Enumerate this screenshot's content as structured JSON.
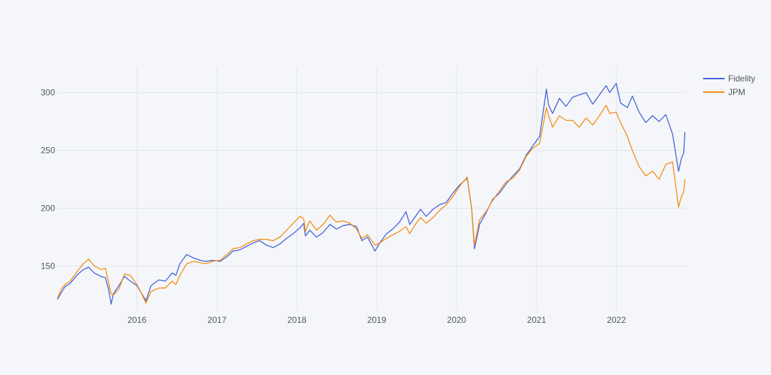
{
  "chart_data": {
    "type": "line",
    "title": "",
    "xlabel": "",
    "ylabel": "",
    "x_range": [
      "2015-01-02",
      "2022-11-10"
    ],
    "xlim": [
      "2015-01-01",
      "2022-11-15"
    ],
    "ylim": [
      112,
      322
    ],
    "x_tick_labels": [
      "2016",
      "2017",
      "2018",
      "2019",
      "2020",
      "2021",
      "2022"
    ],
    "y_tick_values": [
      150,
      200,
      250,
      300
    ],
    "y_tick_labels": [
      "150",
      "200",
      "250",
      "300"
    ],
    "grid": true,
    "legend_position": "top-right",
    "series": [
      {
        "name": "Fidelity",
        "color": "#4363d8",
        "points": [
          [
            "2015-01-02",
            121
          ],
          [
            "2015-01-20",
            127
          ],
          [
            "2015-02-05",
            132
          ],
          [
            "2015-03-01",
            135
          ],
          [
            "2015-04-01",
            142
          ],
          [
            "2015-05-01",
            147
          ],
          [
            "2015-05-25",
            149
          ],
          [
            "2015-06-20",
            144
          ],
          [
            "2015-07-20",
            141
          ],
          [
            "2015-08-10",
            140
          ],
          [
            "2015-08-24",
            130
          ],
          [
            "2015-09-05",
            117
          ],
          [
            "2015-09-15",
            126
          ],
          [
            "2015-10-10",
            133
          ],
          [
            "2015-11-05",
            141
          ],
          [
            "2015-12-01",
            137
          ],
          [
            "2016-01-01",
            133
          ],
          [
            "2016-01-20",
            127
          ],
          [
            "2016-02-11",
            120
          ],
          [
            "2016-03-05",
            133
          ],
          [
            "2016-04-10",
            138
          ],
          [
            "2016-05-10",
            137
          ],
          [
            "2016-06-10",
            144
          ],
          [
            "2016-06-27",
            142
          ],
          [
            "2016-07-15",
            152
          ],
          [
            "2016-08-15",
            160
          ],
          [
            "2016-09-15",
            157
          ],
          [
            "2016-10-15",
            155
          ],
          [
            "2016-11-10",
            154
          ],
          [
            "2016-12-10",
            155
          ],
          [
            "2017-01-15",
            154
          ],
          [
            "2017-02-15",
            158
          ],
          [
            "2017-03-15",
            163
          ],
          [
            "2017-04-15",
            164
          ],
          [
            "2017-05-15",
            167
          ],
          [
            "2017-06-15",
            170
          ],
          [
            "2017-07-15",
            172
          ],
          [
            "2017-08-15",
            168
          ],
          [
            "2017-09-15",
            166
          ],
          [
            "2017-10-15",
            169
          ],
          [
            "2017-11-15",
            174
          ],
          [
            "2017-12-15",
            178
          ],
          [
            "2018-01-15",
            183
          ],
          [
            "2018-02-01",
            187
          ],
          [
            "2018-02-09",
            176
          ],
          [
            "2018-03-01",
            181
          ],
          [
            "2018-04-01",
            175
          ],
          [
            "2018-05-01",
            179
          ],
          [
            "2018-06-01",
            186
          ],
          [
            "2018-07-01",
            182
          ],
          [
            "2018-08-01",
            185
          ],
          [
            "2018-09-01",
            186
          ],
          [
            "2018-10-01",
            184
          ],
          [
            "2018-10-25",
            172
          ],
          [
            "2018-11-20",
            175
          ],
          [
            "2018-12-24",
            163
          ],
          [
            "2019-01-15",
            170
          ],
          [
            "2019-02-15",
            178
          ],
          [
            "2019-03-15",
            182
          ],
          [
            "2019-04-15",
            188
          ],
          [
            "2019-05-15",
            197
          ],
          [
            "2019-06-01",
            186
          ],
          [
            "2019-06-20",
            191
          ],
          [
            "2019-07-20",
            199
          ],
          [
            "2019-08-15",
            193
          ],
          [
            "2019-09-15",
            199
          ],
          [
            "2019-10-15",
            203
          ],
          [
            "2019-11-15",
            205
          ],
          [
            "2019-12-15",
            213
          ],
          [
            "2020-01-15",
            220
          ],
          [
            "2020-02-19",
            226
          ],
          [
            "2020-03-10",
            200
          ],
          [
            "2020-03-23",
            165
          ],
          [
            "2020-04-15",
            186
          ],
          [
            "2020-05-15",
            196
          ],
          [
            "2020-06-15",
            208
          ],
          [
            "2020-07-15",
            213
          ],
          [
            "2020-08-15",
            221
          ],
          [
            "2020-09-15",
            228
          ],
          [
            "2020-10-15",
            234
          ],
          [
            "2020-11-15",
            246
          ],
          [
            "2020-12-15",
            254
          ],
          [
            "2021-01-15",
            262
          ],
          [
            "2021-02-15",
            303
          ],
          [
            "2021-02-25",
            289
          ],
          [
            "2021-03-15",
            282
          ],
          [
            "2021-04-15",
            295
          ],
          [
            "2021-05-15",
            288
          ],
          [
            "2021-06-15",
            296
          ],
          [
            "2021-07-15",
            298
          ],
          [
            "2021-08-15",
            300
          ],
          [
            "2021-09-15",
            290
          ],
          [
            "2021-10-15",
            298
          ],
          [
            "2021-11-15",
            306
          ],
          [
            "2021-12-01",
            300
          ],
          [
            "2021-12-31",
            308
          ],
          [
            "2022-01-20",
            291
          ],
          [
            "2022-02-20",
            287
          ],
          [
            "2022-03-15",
            297
          ],
          [
            "2022-04-15",
            283
          ],
          [
            "2022-05-15",
            274
          ],
          [
            "2022-06-15",
            280
          ],
          [
            "2022-07-15",
            275
          ],
          [
            "2022-08-15",
            281
          ],
          [
            "2022-09-15",
            264
          ],
          [
            "2022-10-12",
            232
          ],
          [
            "2022-10-25",
            243
          ],
          [
            "2022-11-05",
            248
          ],
          [
            "2022-11-10",
            266
          ]
        ]
      },
      {
        "name": "JPM",
        "color": "#f28e14",
        "points": [
          [
            "2015-01-02",
            122
          ],
          [
            "2015-01-20",
            130
          ],
          [
            "2015-02-05",
            134
          ],
          [
            "2015-03-01",
            137
          ],
          [
            "2015-04-01",
            145
          ],
          [
            "2015-05-01",
            152
          ],
          [
            "2015-05-25",
            156
          ],
          [
            "2015-06-20",
            150
          ],
          [
            "2015-07-20",
            147
          ],
          [
            "2015-08-10",
            148
          ],
          [
            "2015-08-24",
            136
          ],
          [
            "2015-09-05",
            126
          ],
          [
            "2015-09-15",
            125
          ],
          [
            "2015-10-10",
            130
          ],
          [
            "2015-11-05",
            143
          ],
          [
            "2015-12-01",
            142
          ],
          [
            "2016-01-01",
            134
          ],
          [
            "2016-01-20",
            127
          ],
          [
            "2016-02-11",
            118
          ],
          [
            "2016-03-05",
            128
          ],
          [
            "2016-04-10",
            131
          ],
          [
            "2016-05-10",
            131
          ],
          [
            "2016-06-10",
            137
          ],
          [
            "2016-06-27",
            134
          ],
          [
            "2016-07-15",
            142
          ],
          [
            "2016-08-15",
            152
          ],
          [
            "2016-09-15",
            154
          ],
          [
            "2016-10-15",
            153
          ],
          [
            "2016-11-10",
            152
          ],
          [
            "2016-12-10",
            154
          ],
          [
            "2017-01-15",
            155
          ],
          [
            "2017-02-15",
            160
          ],
          [
            "2017-03-15",
            165
          ],
          [
            "2017-04-15",
            166
          ],
          [
            "2017-05-15",
            169
          ],
          [
            "2017-06-15",
            172
          ],
          [
            "2017-07-15",
            173
          ],
          [
            "2017-08-15",
            173
          ],
          [
            "2017-09-15",
            172
          ],
          [
            "2017-10-15",
            175
          ],
          [
            "2017-11-15",
            181
          ],
          [
            "2017-12-15",
            187
          ],
          [
            "2018-01-15",
            193
          ],
          [
            "2018-02-01",
            191
          ],
          [
            "2018-02-09",
            180
          ],
          [
            "2018-03-01",
            189
          ],
          [
            "2018-04-01",
            181
          ],
          [
            "2018-05-01",
            186
          ],
          [
            "2018-06-01",
            194
          ],
          [
            "2018-07-01",
            188
          ],
          [
            "2018-08-01",
            189
          ],
          [
            "2018-09-01",
            187
          ],
          [
            "2018-10-01",
            182
          ],
          [
            "2018-10-25",
            174
          ],
          [
            "2018-11-20",
            177
          ],
          [
            "2018-12-24",
            168
          ],
          [
            "2019-01-15",
            170
          ],
          [
            "2019-02-15",
            174
          ],
          [
            "2019-03-15",
            177
          ],
          [
            "2019-04-15",
            180
          ],
          [
            "2019-05-15",
            184
          ],
          [
            "2019-06-01",
            178
          ],
          [
            "2019-06-20",
            184
          ],
          [
            "2019-07-20",
            192
          ],
          [
            "2019-08-15",
            187
          ],
          [
            "2019-09-15",
            192
          ],
          [
            "2019-10-15",
            198
          ],
          [
            "2019-11-15",
            203
          ],
          [
            "2019-12-15",
            210
          ],
          [
            "2020-01-15",
            219
          ],
          [
            "2020-02-19",
            227
          ],
          [
            "2020-03-10",
            200
          ],
          [
            "2020-03-23",
            168
          ],
          [
            "2020-04-15",
            190
          ],
          [
            "2020-05-15",
            197
          ],
          [
            "2020-06-15",
            207
          ],
          [
            "2020-07-15",
            215
          ],
          [
            "2020-08-15",
            223
          ],
          [
            "2020-09-15",
            226
          ],
          [
            "2020-10-15",
            233
          ],
          [
            "2020-11-15",
            245
          ],
          [
            "2020-12-15",
            252
          ],
          [
            "2021-01-15",
            256
          ],
          [
            "2021-02-15",
            287
          ],
          [
            "2021-02-25",
            280
          ],
          [
            "2021-03-15",
            270
          ],
          [
            "2021-04-15",
            280
          ],
          [
            "2021-05-15",
            276
          ],
          [
            "2021-06-15",
            276
          ],
          [
            "2021-07-15",
            270
          ],
          [
            "2021-08-15",
            278
          ],
          [
            "2021-09-15",
            272
          ],
          [
            "2021-10-15",
            280
          ],
          [
            "2021-11-15",
            289
          ],
          [
            "2021-12-01",
            282
          ],
          [
            "2021-12-31",
            283
          ],
          [
            "2022-01-20",
            274
          ],
          [
            "2022-02-20",
            262
          ],
          [
            "2022-03-15",
            250
          ],
          [
            "2022-04-15",
            236
          ],
          [
            "2022-05-15",
            228
          ],
          [
            "2022-06-15",
            232
          ],
          [
            "2022-07-15",
            225
          ],
          [
            "2022-08-15",
            238
          ],
          [
            "2022-09-15",
            240
          ],
          [
            "2022-10-12",
            201
          ],
          [
            "2022-10-25",
            210
          ],
          [
            "2022-11-05",
            214
          ],
          [
            "2022-11-10",
            225
          ]
        ]
      }
    ]
  }
}
